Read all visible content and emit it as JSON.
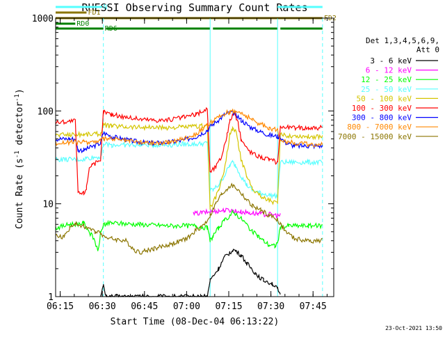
{
  "chart_data": {
    "type": "line",
    "title": "RHESSI Observing Summary Count Rates",
    "xlabel": "Start Time (08-Dec-04 06:13:22)",
    "ylabel": "Count Rate (s⁻¹ detector⁻¹)",
    "ylabel_parts": {
      "main": "Count Rate (s",
      "sup1": "-1",
      "mid": " detector",
      "sup2": "-1",
      "end": ")"
    },
    "yscale": "log",
    "ylim": [
      1,
      1000
    ],
    "xlim_minutes": [
      0,
      99
    ],
    "y_ticks": [
      {
        "value": 1,
        "label": "1"
      },
      {
        "value": 10,
        "label": "10"
      },
      {
        "value": 100,
        "label": "100"
      },
      {
        "value": 1000,
        "label": "1000"
      }
    ],
    "x_ticks": [
      {
        "t": 1.63,
        "label": "06:15"
      },
      {
        "t": 16.63,
        "label": "06:30"
      },
      {
        "t": 31.63,
        "label": "06:45"
      },
      {
        "t": 46.63,
        "label": "07:00"
      },
      {
        "t": 61.63,
        "label": "07:15"
      },
      {
        "t": 76.63,
        "label": "07:30"
      },
      {
        "t": 91.63,
        "label": "07:45"
      }
    ],
    "legend_header": [
      "Det 1,3,4,5,6,9,",
      "Att 0"
    ],
    "legend_placement": "right",
    "timestamp": "23-Oct-2021 13:50",
    "solid_vlines": [
      0,
      55,
      79
    ],
    "dashed_vlines": [
      17,
      95
    ],
    "flags": [
      {
        "label": "N",
        "color": "#55ffff",
        "segments": [
          [
            0,
            16.5
          ],
          [
            79,
            95
          ]
        ],
        "y": 10
      },
      {
        "label": "FD1",
        "color": "#8b7500",
        "segments": [
          [
            0,
            11
          ]
        ],
        "y": 18
      },
      {
        "label": "FD2",
        "color": "#8b7500",
        "segments": [
          [
            0,
            95
          ]
        ],
        "y": 26
      },
      {
        "label": "RD0",
        "color": "#008000",
        "segments": [
          [
            0,
            7
          ]
        ],
        "y": 34
      },
      {
        "label": "RD6",
        "color": "#008000",
        "segments": [
          [
            0,
            17
          ],
          [
            18,
            55
          ],
          [
            56,
            79
          ],
          [
            80,
            95
          ]
        ],
        "y": 41
      }
    ],
    "series": [
      {
        "name": "3 - 6 keV",
        "color": "#000000",
        "points": [
          [
            16,
            1.0
          ],
          [
            17,
            1.3
          ],
          [
            18,
            1.0
          ],
          [
            54,
            1.0
          ],
          [
            55,
            1.5
          ],
          [
            58,
            2.0
          ],
          [
            60,
            2.6
          ],
          [
            62,
            3.0
          ],
          [
            63,
            3.2
          ],
          [
            64,
            3.1
          ],
          [
            66,
            2.8
          ],
          [
            68,
            2.3
          ],
          [
            71,
            1.8
          ],
          [
            74,
            1.5
          ],
          [
            77,
            1.4
          ],
          [
            79,
            1.2
          ],
          [
            80,
            1.0
          ]
        ]
      },
      {
        "name": "6 - 12 keV",
        "color": "#ff00ff",
        "points": [
          [
            49,
            7.8
          ],
          [
            52,
            8.0
          ],
          [
            55,
            8.2
          ],
          [
            58,
            8.4
          ],
          [
            60,
            8.5
          ],
          [
            62,
            8.5
          ],
          [
            64,
            8.4
          ],
          [
            66,
            8.2
          ],
          [
            69,
            8.0
          ],
          [
            72,
            7.8
          ],
          [
            76,
            7.7
          ],
          [
            79,
            7.5
          ],
          [
            80,
            7.5
          ]
        ]
      },
      {
        "name": "12 - 25 keV",
        "color": "#00ff00",
        "points": [
          [
            0,
            5.5
          ],
          [
            5,
            6.0
          ],
          [
            10,
            6.2
          ],
          [
            14,
            4.0
          ],
          [
            15,
            3.0
          ],
          [
            16,
            4.8
          ],
          [
            17,
            6.0
          ],
          [
            20,
            6.2
          ],
          [
            30,
            6.0
          ],
          [
            40,
            5.8
          ],
          [
            50,
            5.8
          ],
          [
            54,
            5.5
          ],
          [
            55,
            4.0
          ],
          [
            56,
            4.5
          ],
          [
            58,
            5.5
          ],
          [
            60,
            6.5
          ],
          [
            62,
            7.5
          ],
          [
            63,
            8.0
          ],
          [
            64,
            7.8
          ],
          [
            66,
            7.0
          ],
          [
            68,
            6.0
          ],
          [
            70,
            5.0
          ],
          [
            72,
            4.5
          ],
          [
            74,
            4.0
          ],
          [
            76,
            3.6
          ],
          [
            78,
            3.5
          ],
          [
            79,
            3.8
          ],
          [
            80,
            5.5
          ],
          [
            83,
            5.8
          ],
          [
            90,
            5.8
          ],
          [
            95,
            5.8
          ]
        ]
      },
      {
        "name": "25 - 50 keV",
        "color": "#55ffff",
        "points": [
          [
            0,
            30
          ],
          [
            5,
            30
          ],
          [
            10,
            30
          ],
          [
            11,
            31
          ],
          [
            16,
            32
          ],
          [
            17,
            44
          ],
          [
            20,
            43
          ],
          [
            25,
            43
          ],
          [
            30,
            43
          ],
          [
            35,
            43
          ],
          [
            40,
            43
          ],
          [
            45,
            44
          ],
          [
            50,
            44
          ],
          [
            54,
            45
          ],
          [
            55,
            14
          ],
          [
            56,
            14
          ],
          [
            58,
            16
          ],
          [
            60,
            20
          ],
          [
            62,
            26
          ],
          [
            63,
            28
          ],
          [
            64,
            26
          ],
          [
            66,
            20
          ],
          [
            68,
            16
          ],
          [
            70,
            14
          ],
          [
            73,
            13
          ],
          [
            76,
            12.5
          ],
          [
            79,
            12.0
          ],
          [
            80,
            28
          ],
          [
            85,
            28
          ],
          [
            90,
            28
          ],
          [
            95,
            28
          ]
        ]
      },
      {
        "name": "50 - 100 keV",
        "color": "#d4c500",
        "points": [
          [
            0,
            55
          ],
          [
            5,
            56
          ],
          [
            10,
            56
          ],
          [
            16,
            57
          ],
          [
            17,
            70
          ],
          [
            20,
            69
          ],
          [
            25,
            68
          ],
          [
            30,
            67
          ],
          [
            35,
            66
          ],
          [
            40,
            66
          ],
          [
            45,
            67
          ],
          [
            50,
            68
          ],
          [
            54,
            70
          ],
          [
            55,
            9
          ],
          [
            56,
            10
          ],
          [
            58,
            14
          ],
          [
            60,
            22
          ],
          [
            61,
            35
          ],
          [
            62,
            55
          ],
          [
            63,
            65
          ],
          [
            64,
            62
          ],
          [
            65,
            45
          ],
          [
            66,
            30
          ],
          [
            68,
            20
          ],
          [
            70,
            15
          ],
          [
            73,
            12
          ],
          [
            76,
            11
          ],
          [
            79,
            10
          ],
          [
            80,
            55
          ],
          [
            85,
            54
          ],
          [
            90,
            53
          ],
          [
            95,
            53
          ]
        ]
      },
      {
        "name": "100 - 300 keV",
        "color": "#ff0000",
        "points": [
          [
            0,
            75
          ],
          [
            5,
            78
          ],
          [
            7,
            78
          ],
          [
            8,
            13
          ],
          [
            10,
            13
          ],
          [
            11,
            15
          ],
          [
            12,
            25
          ],
          [
            13,
            27
          ],
          [
            16,
            28
          ],
          [
            17,
            98
          ],
          [
            20,
            92
          ],
          [
            25,
            86
          ],
          [
            30,
            82
          ],
          [
            35,
            80
          ],
          [
            40,
            80
          ],
          [
            45,
            85
          ],
          [
            50,
            92
          ],
          [
            54,
            105
          ],
          [
            55,
            22
          ],
          [
            57,
            25
          ],
          [
            59,
            32
          ],
          [
            61,
            55
          ],
          [
            62,
            78
          ],
          [
            63,
            92
          ],
          [
            64,
            90
          ],
          [
            65,
            72
          ],
          [
            66,
            50
          ],
          [
            68,
            40
          ],
          [
            70,
            35
          ],
          [
            73,
            32
          ],
          [
            76,
            30
          ],
          [
            79,
            28
          ],
          [
            80,
            68
          ],
          [
            85,
            66
          ],
          [
            90,
            66
          ],
          [
            95,
            66
          ]
        ]
      },
      {
        "name": "300 - 800 keV",
        "color": "#0000ff",
        "points": [
          [
            0,
            50
          ],
          [
            5,
            50
          ],
          [
            7,
            50
          ],
          [
            8,
            38
          ],
          [
            10,
            38
          ],
          [
            12,
            40
          ],
          [
            16,
            45
          ],
          [
            17,
            58
          ],
          [
            20,
            53
          ],
          [
            25,
            49
          ],
          [
            30,
            46
          ],
          [
            35,
            45
          ],
          [
            40,
            46
          ],
          [
            45,
            48
          ],
          [
            50,
            53
          ],
          [
            54,
            62
          ],
          [
            56,
            72
          ],
          [
            58,
            80
          ],
          [
            60,
            90
          ],
          [
            62,
            96
          ],
          [
            63,
            97
          ],
          [
            64,
            94
          ],
          [
            66,
            80
          ],
          [
            68,
            72
          ],
          [
            70,
            65
          ],
          [
            73,
            60
          ],
          [
            76,
            55
          ],
          [
            79,
            53
          ],
          [
            80,
            52
          ],
          [
            82,
            45
          ],
          [
            85,
            42
          ],
          [
            90,
            42
          ],
          [
            95,
            42
          ]
        ]
      },
      {
        "name": "800 - 7000 keV",
        "color": "#ff8800",
        "points": [
          [
            0,
            45
          ],
          [
            5,
            46
          ],
          [
            10,
            46
          ],
          [
            14,
            47
          ],
          [
            16,
            48
          ],
          [
            17,
            50
          ],
          [
            20,
            50
          ],
          [
            25,
            48
          ],
          [
            30,
            46
          ],
          [
            35,
            45
          ],
          [
            40,
            46
          ],
          [
            45,
            50
          ],
          [
            50,
            57
          ],
          [
            54,
            70
          ],
          [
            56,
            78
          ],
          [
            58,
            85
          ],
          [
            60,
            93
          ],
          [
            62,
            98
          ],
          [
            63,
            100
          ],
          [
            64,
            99
          ],
          [
            66,
            95
          ],
          [
            68,
            88
          ],
          [
            70,
            80
          ],
          [
            73,
            72
          ],
          [
            76,
            66
          ],
          [
            79,
            62
          ],
          [
            80,
            50
          ],
          [
            82,
            47
          ],
          [
            85,
            45
          ],
          [
            90,
            44
          ],
          [
            95,
            43
          ]
        ]
      },
      {
        "name": "7000 - 15000 keV",
        "color": "#8b7500",
        "points": [
          [
            0,
            4.5
          ],
          [
            3,
            4.4
          ],
          [
            5,
            5.5
          ],
          [
            7,
            6.0
          ],
          [
            10,
            5.8
          ],
          [
            14,
            5.0
          ],
          [
            16,
            5.0
          ],
          [
            17,
            4.5
          ],
          [
            20,
            4.2
          ],
          [
            25,
            4.0
          ],
          [
            28,
            3.2
          ],
          [
            30,
            3.0
          ],
          [
            35,
            3.3
          ],
          [
            40,
            3.6
          ],
          [
            45,
            4.0
          ],
          [
            48,
            4.5
          ],
          [
            50,
            5.2
          ],
          [
            53,
            6.0
          ],
          [
            55,
            7.5
          ],
          [
            57,
            10
          ],
          [
            59,
            12.5
          ],
          [
            61,
            14.5
          ],
          [
            62,
            15.5
          ],
          [
            63,
            15.5
          ],
          [
            64,
            15
          ],
          [
            66,
            13
          ],
          [
            68,
            11
          ],
          [
            70,
            9.5
          ],
          [
            73,
            8.5
          ],
          [
            76,
            7.5
          ],
          [
            79,
            6.8
          ],
          [
            80,
            6.0
          ],
          [
            82,
            5.0
          ],
          [
            85,
            4.2
          ],
          [
            90,
            4.0
          ],
          [
            95,
            4.0
          ]
        ]
      }
    ]
  }
}
